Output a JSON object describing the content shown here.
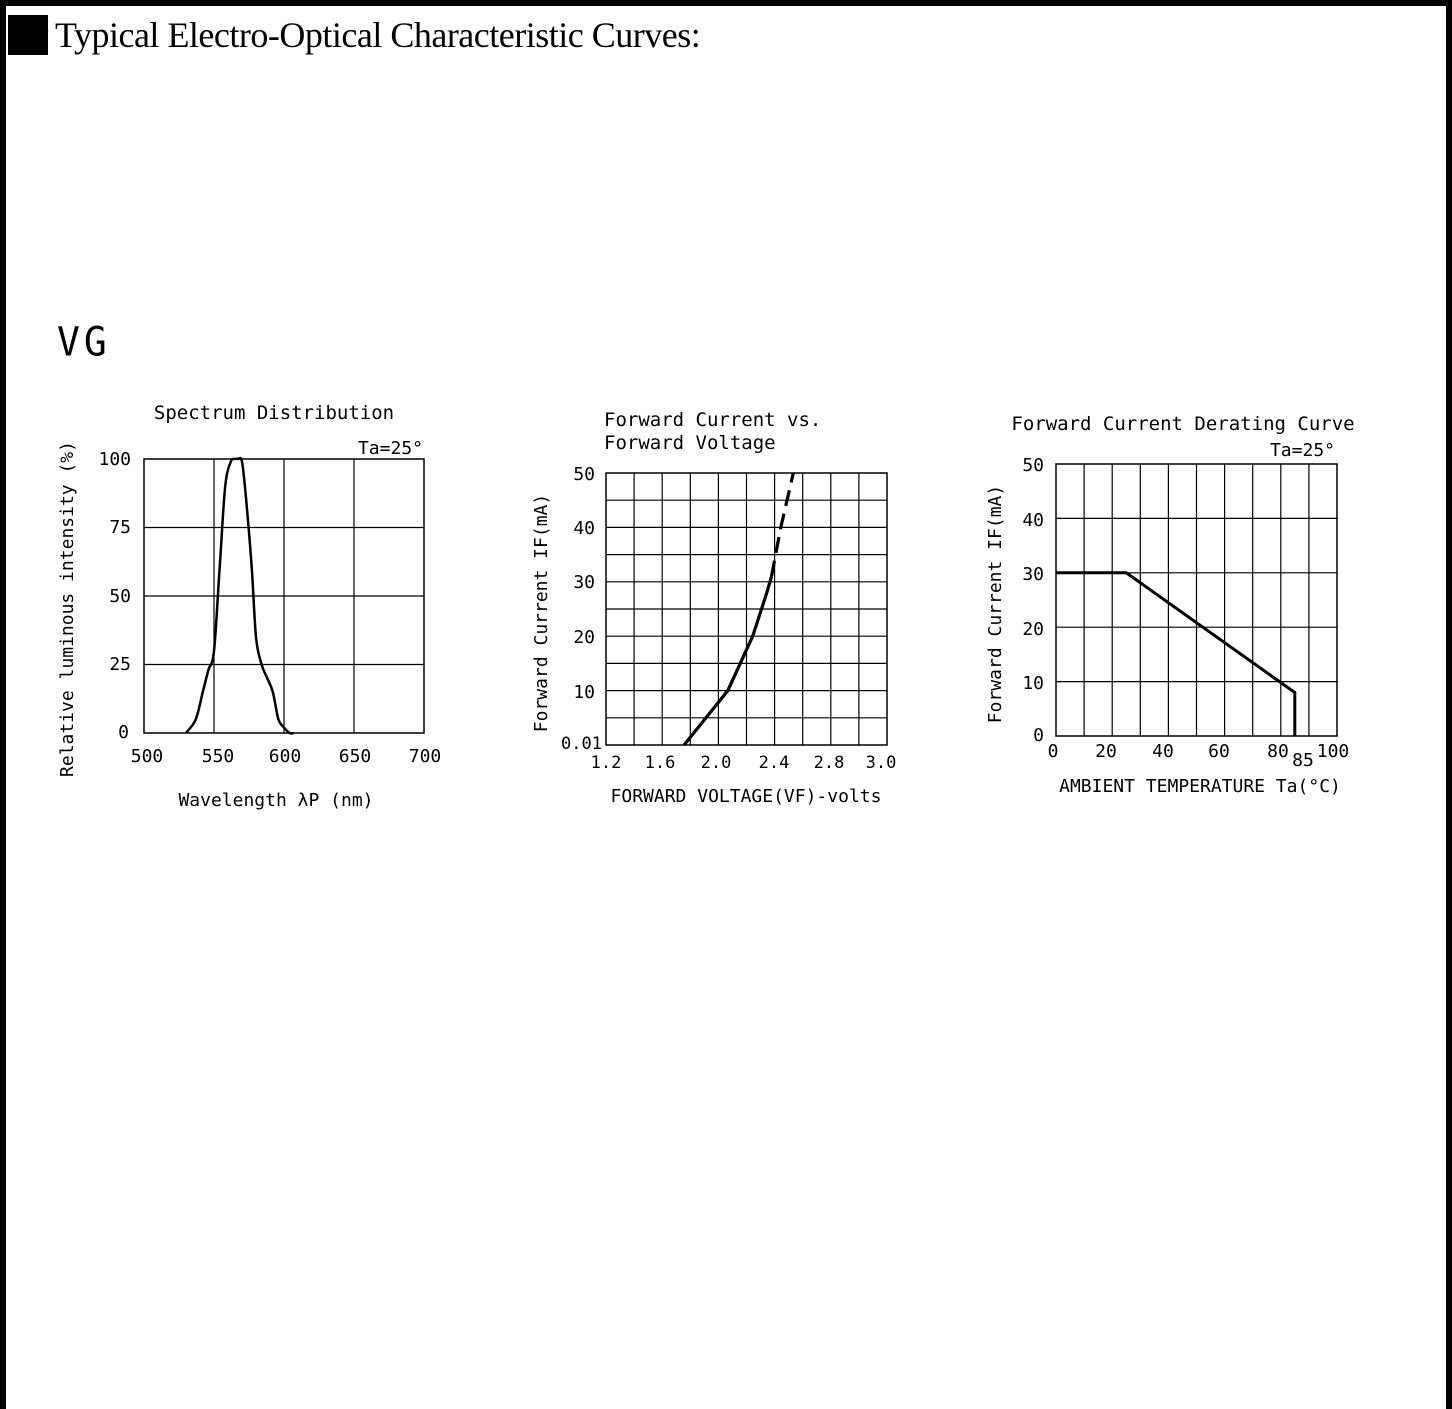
{
  "header": {
    "title": "Typical Electro-Optical Characteristic Curves:"
  },
  "section": {
    "label": "VG"
  },
  "chart_data": [
    {
      "type": "line",
      "title": "Spectrum Distribution",
      "condition": "Ta=25°",
      "xlabel": "Wavelength λP (nm)",
      "ylabel": "Relative luminous intensity (%)",
      "xlim": [
        500,
        700
      ],
      "ylim": [
        0,
        100
      ],
      "xticks": [
        "500",
        "550",
        "600",
        "650",
        "700"
      ],
      "yticks": [
        "0",
        "25",
        "50",
        "75",
        "100"
      ],
      "grid": true,
      "series": [
        {
          "x": [
            530,
            537,
            542,
            546,
            550,
            554,
            558,
            562,
            565,
            567,
            570,
            573,
            577,
            580,
            584,
            588,
            592,
            596,
            600,
            604,
            607
          ],
          "y": [
            0,
            5,
            15,
            23,
            30,
            60,
            90,
            99,
            100,
            100,
            99,
            85,
            60,
            35,
            25,
            20,
            15,
            5,
            2,
            0,
            0
          ]
        }
      ]
    },
    {
      "type": "line",
      "title": "Forward Current vs.",
      "subtitle": "Forward Voltage",
      "xlabel": "FORWARD VOLTAGE(VF)-volts",
      "ylabel": "Forward Current IF(mA)",
      "xlim": [
        1.2,
        3.0
      ],
      "ylim": [
        0,
        50
      ],
      "xticks": [
        "1.2",
        "1.6",
        "2.0",
        "2.4",
        "2.8",
        "3.0"
      ],
      "yticks": [
        "0.01",
        "10",
        "20",
        "30",
        "40",
        "50"
      ],
      "grid": true,
      "series": [
        {
          "style": "solid",
          "x": [
            1.7,
            1.98,
            2.14,
            2.23,
            2.26
          ],
          "y": [
            0,
            10,
            20,
            28,
            31
          ]
        },
        {
          "style": "dashed",
          "x": [
            2.26,
            2.32,
            2.4
          ],
          "y": [
            31,
            40,
            50
          ]
        }
      ]
    },
    {
      "type": "line",
      "title": "Forward Current Derating Curve",
      "condition": "Ta=25°",
      "xlabel": "AMBIENT TEMPERATURE Ta(°C)",
      "ylabel": "Forward Current IF(mA)",
      "xlim": [
        0,
        100
      ],
      "ylim": [
        0,
        50
      ],
      "xticks": [
        "0",
        "20",
        "40",
        "60",
        "80",
        "85",
        "100"
      ],
      "yticks": [
        "0",
        "10",
        "20",
        "30",
        "40",
        "50"
      ],
      "grid": true,
      "series": [
        {
          "x": [
            0,
            25,
            85,
            85
          ],
          "y": [
            30,
            30,
            8,
            0
          ]
        }
      ]
    }
  ]
}
